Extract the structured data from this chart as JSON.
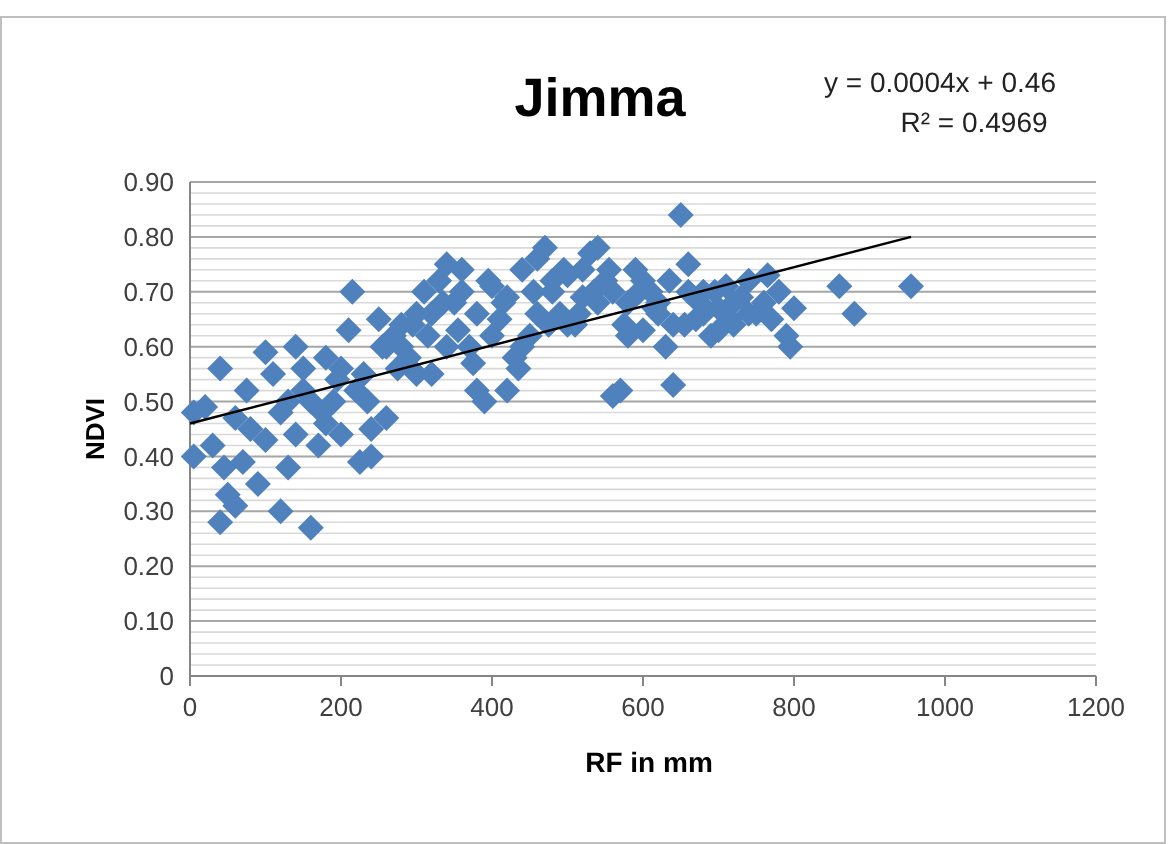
{
  "chart_data": {
    "type": "scatter",
    "title": "Jimma",
    "xlabel": "RF in mm",
    "ylabel": "NDVI",
    "annotations": [
      "y = 0.0004x + 0.46",
      "R² = 0.4969"
    ],
    "xlim": [
      0,
      1200
    ],
    "xticks": [
      0,
      200,
      400,
      600,
      800,
      1000,
      1200
    ],
    "ylim": [
      0,
      0.9
    ],
    "yticks": [
      0,
      {
        "value": 0.02,
        "label": null
      },
      {
        "value": 0.04,
        "label": null
      },
      {
        "value": 0.06,
        "label": null
      },
      {
        "value": 0.08,
        "label": null
      },
      {
        "value": 0.1,
        "label": "0.10"
      },
      {
        "value": 0.12,
        "label": null
      },
      {
        "value": 0.14,
        "label": null
      },
      {
        "value": 0.16,
        "label": null
      },
      {
        "value": 0.18,
        "label": null
      },
      {
        "value": 0.2,
        "label": "0.20"
      },
      {
        "value": 0.22,
        "label": null
      },
      {
        "value": 0.24,
        "label": null
      },
      {
        "value": 0.26,
        "label": null
      },
      {
        "value": 0.28,
        "label": null
      },
      {
        "value": 0.3,
        "label": "0.30"
      },
      {
        "value": 0.32,
        "label": null
      },
      {
        "value": 0.34,
        "label": null
      },
      {
        "value": 0.36,
        "label": null
      },
      {
        "value": 0.38,
        "label": null
      },
      {
        "value": 0.4,
        "label": "0.40"
      },
      {
        "value": 0.42,
        "label": null
      },
      {
        "value": 0.44,
        "label": null
      },
      {
        "value": 0.46,
        "label": null
      },
      {
        "value": 0.48,
        "label": null
      },
      {
        "value": 0.5,
        "label": "0.50"
      },
      {
        "value": 0.52,
        "label": null
      },
      {
        "value": 0.54,
        "label": null
      },
      {
        "value": 0.56,
        "label": null
      },
      {
        "value": 0.58,
        "label": null
      },
      {
        "value": 0.6,
        "label": "0.60"
      },
      {
        "value": 0.62,
        "label": null
      },
      {
        "value": 0.64,
        "label": null
      },
      {
        "value": 0.66,
        "label": null
      },
      {
        "value": 0.68,
        "label": null
      },
      {
        "value": 0.7,
        "label": "0.70"
      },
      {
        "value": 0.72,
        "label": null
      },
      {
        "value": 0.74,
        "label": null
      },
      {
        "value": 0.76,
        "label": null
      },
      {
        "value": 0.78,
        "label": null
      },
      {
        "value": 0.8,
        "label": "0.80"
      },
      {
        "value": 0.82,
        "label": null
      },
      {
        "value": 0.84,
        "label": null
      },
      {
        "value": 0.86,
        "label": null
      },
      {
        "value": 0.88,
        "label": null
      },
      {
        "value": 0.9,
        "label": "0.90"
      }
    ],
    "grid": "y",
    "marker": "diamond",
    "series": [
      {
        "type": "scatter",
        "color": "#4f81bd",
        "marker": "diamond",
        "x": [
          5,
          5,
          20,
          40,
          40,
          50,
          60,
          30,
          45,
          70,
          90,
          100,
          110,
          120,
          130,
          160,
          140,
          150,
          80,
          100,
          60,
          75,
          180,
          170,
          200,
          215,
          225,
          240,
          210,
          190,
          230,
          250,
          260,
          270,
          280,
          290,
          300,
          310,
          320,
          330,
          340,
          350,
          360,
          370,
          380,
          390,
          400,
          410,
          420,
          430,
          440,
          450,
          460,
          470,
          480,
          490,
          500,
          510,
          520,
          530,
          540,
          550,
          560,
          570,
          580,
          590,
          600,
          610,
          620,
          630,
          640,
          650,
          660,
          670,
          680,
          690,
          700,
          710,
          720,
          730,
          740,
          750,
          760,
          770,
          780,
          790,
          795,
          800,
          860,
          880,
          955,
          120,
          140,
          160,
          180,
          200,
          220,
          240,
          260,
          280,
          300,
          320,
          340,
          360,
          380,
          400,
          420,
          440,
          460,
          480,
          500,
          520,
          540,
          560,
          580,
          600,
          620,
          640,
          660,
          680,
          700,
          720,
          740,
          130,
          150,
          175,
          195,
          235,
          255,
          275,
          295,
          315,
          335,
          355,
          375,
          395,
          415,
          435,
          455,
          475,
          495,
          515,
          535,
          555,
          575,
          595,
          615,
          635,
          655,
          675,
          695,
          715,
          765
        ],
        "values": [
          0.4,
          0.48,
          0.49,
          0.56,
          0.28,
          0.33,
          0.31,
          0.42,
          0.38,
          0.39,
          0.35,
          0.59,
          0.55,
          0.3,
          0.38,
          0.27,
          0.6,
          0.52,
          0.45,
          0.43,
          0.47,
          0.52,
          0.58,
          0.42,
          0.44,
          0.7,
          0.39,
          0.4,
          0.63,
          0.5,
          0.55,
          0.65,
          0.47,
          0.62,
          0.6,
          0.58,
          0.66,
          0.7,
          0.55,
          0.72,
          0.75,
          0.68,
          0.74,
          0.6,
          0.52,
          0.5,
          0.71,
          0.65,
          0.52,
          0.58,
          0.74,
          0.62,
          0.76,
          0.78,
          0.7,
          0.66,
          0.73,
          0.64,
          0.69,
          0.77,
          0.78,
          0.72,
          0.51,
          0.52,
          0.68,
          0.74,
          0.63,
          0.7,
          0.66,
          0.6,
          0.53,
          0.84,
          0.75,
          0.65,
          0.7,
          0.62,
          0.67,
          0.71,
          0.64,
          0.69,
          0.72,
          0.66,
          0.68,
          0.65,
          0.7,
          0.62,
          0.6,
          0.67,
          0.71,
          0.66,
          0.71,
          0.48,
          0.44,
          0.5,
          0.46,
          0.56,
          0.52,
          0.45,
          0.6,
          0.64,
          0.55,
          0.66,
          0.6,
          0.7,
          0.66,
          0.62,
          0.69,
          0.6,
          0.66,
          0.72,
          0.64,
          0.74,
          0.68,
          0.7,
          0.62,
          0.72,
          0.68,
          0.64,
          0.7,
          0.66,
          0.63,
          0.68,
          0.66,
          0.5,
          0.56,
          0.48,
          0.54,
          0.5,
          0.6,
          0.56,
          0.64,
          0.62,
          0.68,
          0.63,
          0.57,
          0.72,
          0.68,
          0.56,
          0.7,
          0.64,
          0.74,
          0.66,
          0.7,
          0.74,
          0.64,
          0.7,
          0.67,
          0.72,
          0.64,
          0.68,
          0.7,
          0.65,
          0.73
        ]
      },
      {
        "type": "line",
        "color": "#000000",
        "marker": "none",
        "x": [
          0,
          955
        ],
        "values": [
          0.46,
          0.8
        ]
      }
    ]
  }
}
